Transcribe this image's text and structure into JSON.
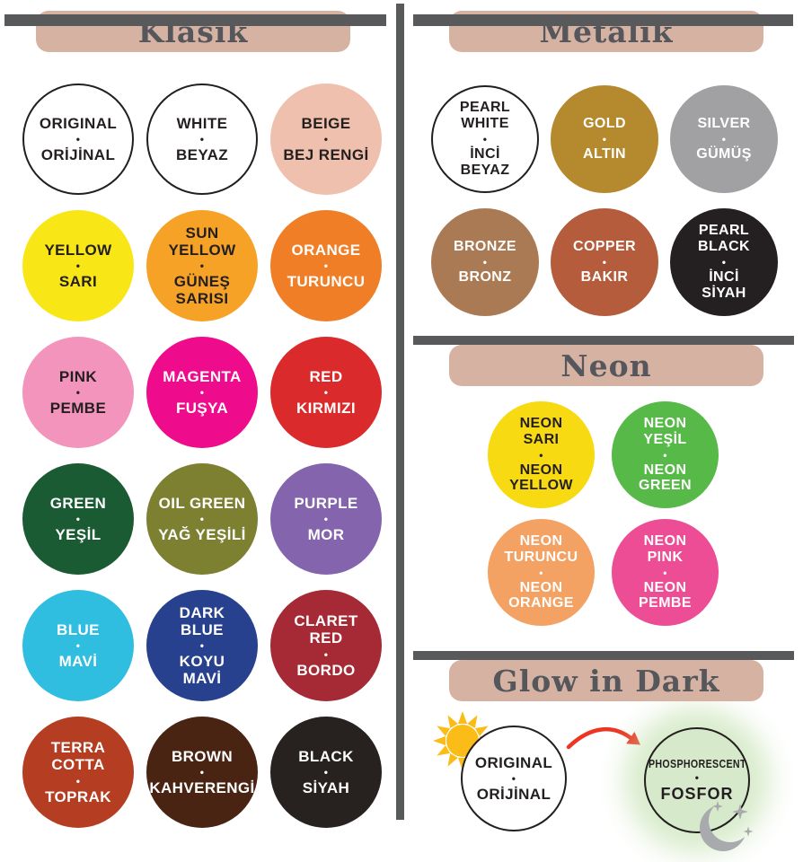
{
  "separator": "•",
  "palette": {
    "bar": "#58595b",
    "header_bg": "#d5b2a2",
    "header_fg": "#55575c",
    "dark_text": "#231f20",
    "light_text": "#ffffff"
  },
  "sections": {
    "klasik": {
      "title": "Klasik",
      "swatches": [
        {
          "id": "original",
          "top": [
            "ORIGINAL"
          ],
          "bottom": [
            "ORİJİNAL"
          ],
          "bg": "#ffffff",
          "fg": "#231f20",
          "border": "#231f20"
        },
        {
          "id": "white",
          "top": [
            "WHITE"
          ],
          "bottom": [
            "BEYAZ"
          ],
          "bg": "#ffffff",
          "fg": "#231f20",
          "border": "#231f20"
        },
        {
          "id": "beige",
          "top": [
            "BEIGE"
          ],
          "bottom": [
            "BEJ RENGİ"
          ],
          "bg": "#efc0ad",
          "fg": "#231f20"
        },
        {
          "id": "yellow",
          "top": [
            "YELLOW"
          ],
          "bottom": [
            "SARI"
          ],
          "bg": "#f9e617",
          "fg": "#231f20"
        },
        {
          "id": "sun-yellow",
          "top": [
            "SUN",
            "YELLOW"
          ],
          "bottom": [
            "GÜNEŞ",
            "SARISI"
          ],
          "bg": "#f6a226",
          "fg": "#231f20"
        },
        {
          "id": "orange",
          "top": [
            "ORANGE"
          ],
          "bottom": [
            "TURUNCU"
          ],
          "bg": "#f07e26",
          "fg": "#ffffff"
        },
        {
          "id": "pink",
          "top": [
            "PINK"
          ],
          "bottom": [
            "PEMBE"
          ],
          "bg": "#f294bb",
          "fg": "#231f20"
        },
        {
          "id": "magenta",
          "top": [
            "MAGENTA"
          ],
          "bottom": [
            "FUŞYA"
          ],
          "bg": "#ee0b8c",
          "fg": "#ffffff"
        },
        {
          "id": "red",
          "top": [
            "RED"
          ],
          "bottom": [
            "KIRMIZI"
          ],
          "bg": "#db2a2c",
          "fg": "#ffffff"
        },
        {
          "id": "green",
          "top": [
            "GREEN"
          ],
          "bottom": [
            "YEŞİL"
          ],
          "bg": "#1a5b33",
          "fg": "#ffffff"
        },
        {
          "id": "oil-green",
          "top": [
            "OIL GREEN"
          ],
          "bottom": [
            "YAĞ YEŞİLİ"
          ],
          "bg": "#7c8030",
          "fg": "#ffffff"
        },
        {
          "id": "purple",
          "top": [
            "PURPLE"
          ],
          "bottom": [
            "MOR"
          ],
          "bg": "#8464ad",
          "fg": "#ffffff"
        },
        {
          "id": "blue",
          "top": [
            "BLUE"
          ],
          "bottom": [
            "MAVİ"
          ],
          "bg": "#2fbde0",
          "fg": "#ffffff"
        },
        {
          "id": "dark-blue",
          "top": [
            "DARK",
            "BLUE"
          ],
          "bottom": [
            "KOYU",
            "MAVİ"
          ],
          "bg": "#27418f",
          "fg": "#ffffff"
        },
        {
          "id": "claret-red",
          "top": [
            "CLARET",
            "RED"
          ],
          "bottom": [
            "BORDO"
          ],
          "bg": "#a52a35",
          "fg": "#ffffff"
        },
        {
          "id": "terra-cotta",
          "top": [
            "TERRA",
            "COTTA"
          ],
          "bottom": [
            "TOPRAK"
          ],
          "bg": "#b43d22",
          "fg": "#ffffff"
        },
        {
          "id": "brown",
          "top": [
            "BROWN"
          ],
          "bottom": [
            "KAHVERENGİ"
          ],
          "bg": "#4a2413",
          "fg": "#ffffff"
        },
        {
          "id": "black",
          "top": [
            "BLACK"
          ],
          "bottom": [
            "SİYAH"
          ],
          "bg": "#272120",
          "fg": "#ffffff"
        }
      ]
    },
    "metalik": {
      "title": "Metalik",
      "swatches": [
        {
          "id": "pearl-white",
          "top": [
            "PEARL",
            "WHITE"
          ],
          "bottom": [
            "İNCİ",
            "BEYAZ"
          ],
          "bg": "#ffffff",
          "fg": "#231f20",
          "border": "#231f20"
        },
        {
          "id": "gold",
          "top": [
            "GOLD"
          ],
          "bottom": [
            "ALTIN"
          ],
          "bg": "#b58a2e",
          "fg": "#ffffff"
        },
        {
          "id": "silver",
          "top": [
            "SILVER"
          ],
          "bottom": [
            "GÜMÜŞ"
          ],
          "bg": "#a1a1a4",
          "fg": "#ffffff"
        },
        {
          "id": "bronze",
          "top": [
            "BRONZE"
          ],
          "bottom": [
            "BRONZ"
          ],
          "bg": "#a97a53",
          "fg": "#ffffff"
        },
        {
          "id": "copper",
          "top": [
            "COPPER"
          ],
          "bottom": [
            "BAKIR"
          ],
          "bg": "#b55c3d",
          "fg": "#ffffff"
        },
        {
          "id": "pearl-black",
          "top": [
            "PEARL",
            "BLACK"
          ],
          "bottom": [
            "İNCİ",
            "SİYAH"
          ],
          "bg": "#242021",
          "fg": "#ffffff"
        }
      ]
    },
    "neon": {
      "title": "Neon",
      "swatches": [
        {
          "id": "neon-yellow",
          "top": [
            "NEON",
            "SARI"
          ],
          "bottom": [
            "NEON",
            "YELLOW"
          ],
          "bg": "#f7da12",
          "fg": "#231f20"
        },
        {
          "id": "neon-green",
          "top": [
            "NEON",
            "YEŞİL"
          ],
          "bottom": [
            "NEON",
            "GREEN"
          ],
          "bg": "#56b948",
          "fg": "#ffffff"
        },
        {
          "id": "neon-orange",
          "top": [
            "NEON",
            "TURUNCU"
          ],
          "bottom": [
            "NEON",
            "ORANGE"
          ],
          "bg": "#f4a263",
          "fg": "#ffffff"
        },
        {
          "id": "neon-pink",
          "top": [
            "NEON",
            "PINK"
          ],
          "bottom": [
            "NEON",
            "PEMBE"
          ],
          "bg": "#ec4d95",
          "fg": "#ffffff"
        }
      ]
    },
    "glow": {
      "title": "Glow in Dark",
      "original": {
        "top": [
          "ORIGINAL"
        ],
        "bottom": [
          "ORİJİNAL"
        ],
        "bg": "#ffffff",
        "fg": "#231f20",
        "border": "#231f20"
      },
      "phosphorescent": {
        "top": [
          "PHOSPHORESCENT"
        ],
        "bottom": [
          "FOSFOR"
        ],
        "bg": "#d6e9ca",
        "fg": "#231f20",
        "border": "#231f20",
        "glow": "#cfe6c0"
      },
      "sun_color": "#fcbc17",
      "arrow_color": "#ee3524",
      "moon_color": "#a8aaad"
    }
  }
}
